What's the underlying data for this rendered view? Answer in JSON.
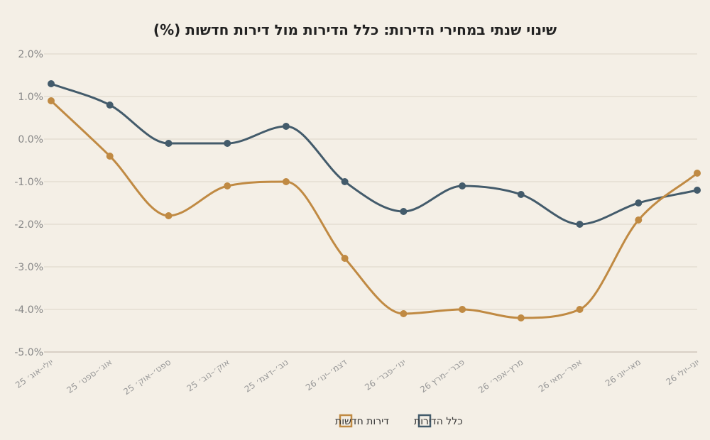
{
  "chart_data": {
    "type": "line",
    "title": "שינוי שנתי במחירי הדירות: כלל הדירות מול דירות חדשות (%)",
    "xlabel": "",
    "ylabel": "",
    "categories": [
      "יולי–אוג׳ 25",
      "אוג׳–ספט׳ 25",
      "ספט׳–אוק׳ 25",
      "אוק׳–נוב׳ 25",
      "נוב׳–דצמ׳ 25",
      "דצמ׳–ינו׳ 26",
      "ינו׳–פבר׳ 26",
      "פבר׳–מרץ 26",
      "מרץ–אפר׳ 26",
      "אפר׳–מאי 26",
      "מאי–יוני 26",
      "יוני–יולי 26"
    ],
    "y_ticks": [
      "2.0%",
      "1.0%",
      "0.0%",
      "-1.0%",
      "-2.0%",
      "-3.0%",
      "-4.0%",
      "-5.0%"
    ],
    "ylim": [
      -5,
      2
    ],
    "grid": true,
    "legend_position": "bottom-center",
    "series": [
      {
        "name": "כלל הדירות",
        "color": "#435b6b",
        "values": [
          1.3,
          0.8,
          -0.1,
          -0.1,
          0.3,
          -1.0,
          -1.7,
          -1.1,
          -1.3,
          -2.0,
          -1.5,
          -1.2
        ]
      },
      {
        "name": "דירות חדשות",
        "color": "#c08a43",
        "values": [
          0.9,
          -0.4,
          -1.8,
          -1.1,
          -1.0,
          -2.8,
          -4.1,
          -4.0,
          -4.2,
          -4.0,
          -1.9,
          -0.8
        ]
      }
    ]
  }
}
